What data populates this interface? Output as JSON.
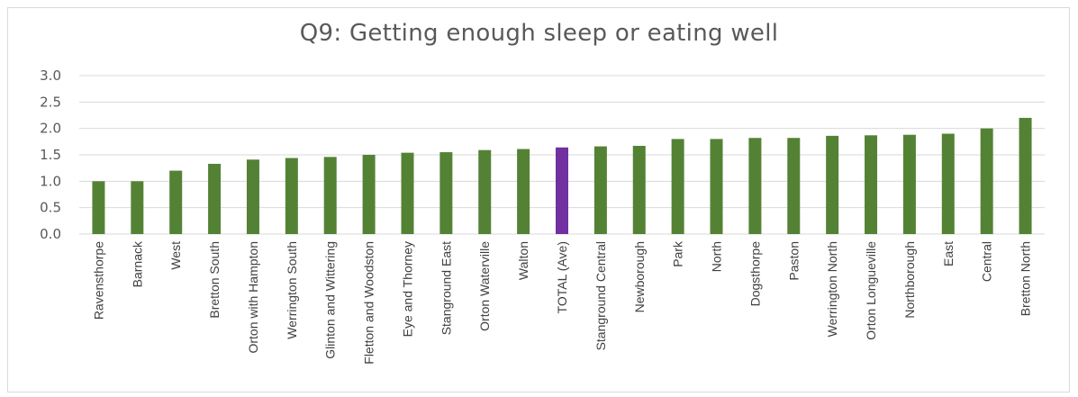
{
  "chart_data": {
    "type": "bar",
    "title": "Q9: Getting enough sleep or eating well",
    "xlabel": "",
    "ylabel": "",
    "ylim": [
      0,
      3.0
    ],
    "yticks": [
      "0.0",
      "0.5",
      "1.0",
      "1.5",
      "2.0",
      "2.5",
      "3.0"
    ],
    "grid": true,
    "legend": "none",
    "categories": [
      "Ravensthorpe",
      "Barnack",
      "West",
      "Bretton South",
      "Orton with Hampton",
      "Werrington South",
      "Glinton and Wittering",
      "Fletton and Woodston",
      "Eye and Thorney",
      "Stanground East",
      "Orton Waterville",
      "Walton",
      "TOTAL (Ave)",
      "Stanground Central",
      "Newborough",
      "Park",
      "North",
      "Dogsthorpe",
      "Paston",
      "Werrington North",
      "Orton Longueville",
      "Northborough",
      "East",
      "Central",
      "Bretton North"
    ],
    "values": [
      1.0,
      1.0,
      1.2,
      1.33,
      1.41,
      1.44,
      1.46,
      1.5,
      1.54,
      1.55,
      1.59,
      1.61,
      1.64,
      1.66,
      1.67,
      1.8,
      1.8,
      1.82,
      1.82,
      1.86,
      1.87,
      1.88,
      1.9,
      2.0,
      2.2
    ],
    "colors": {
      "bar": "#548235",
      "highlight": "#7030a0",
      "grid": "#d9d9d9"
    },
    "highlight_category": "TOTAL (Ave)"
  }
}
